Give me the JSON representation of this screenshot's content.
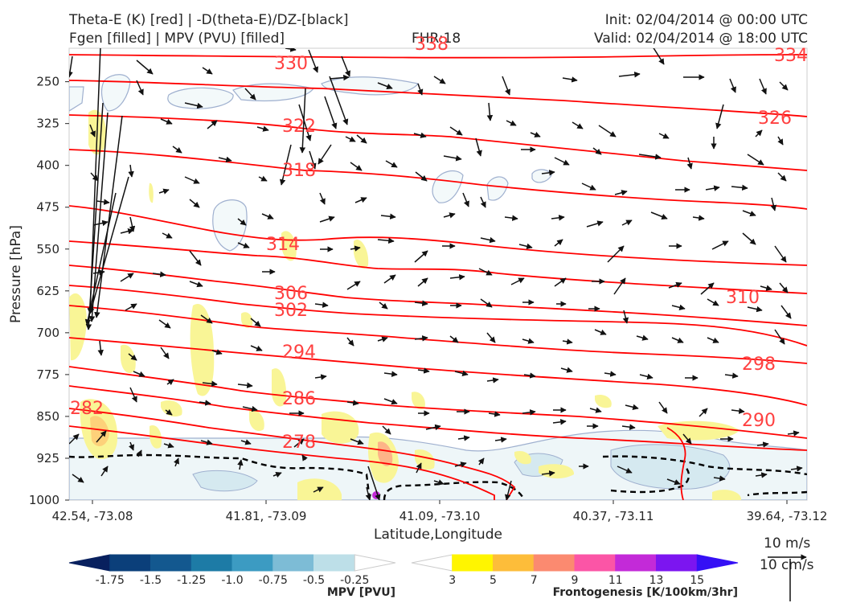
{
  "header": {
    "title_line1": "Theta-E (K) [red] | -D(theta-E)/DZ-[black]",
    "title_line2": "Fgen [filled] | MPV (PVU) [filled]",
    "fhr": "FHR:18",
    "init": "Init: 02/04/2014 @ 00:00 UTC",
    "valid": "Valid: 02/04/2014 @ 18:00 UTC"
  },
  "chart_data": {
    "type": "cross-section",
    "xlabel": "Latitude,Longitude",
    "ylabel": "Pressure [hPa]",
    "x_ticks": [
      "42.54, -73.08",
      "41.81, -73.09",
      "41.09, -73.10",
      "40.37, -73.11",
      "39.64, -73.12"
    ],
    "y_ticks": [
      "250",
      "325",
      "400",
      "475",
      "550",
      "625",
      "700",
      "775",
      "850",
      "925",
      "1000"
    ],
    "ylim": [
      1000,
      190
    ],
    "theta_e_labels": [
      "338",
      "334",
      "330",
      "326",
      "322",
      "318",
      "314",
      "310",
      "306",
      "302",
      "298",
      "294",
      "290",
      "286",
      "282",
      "278"
    ],
    "mpv_colorbar": {
      "title": "MPV [PVU]",
      "ticks": [
        "-1.75",
        "-1.5",
        "-1.25",
        "-1.0",
        "-0.75",
        "-0.5",
        "-0.25"
      ],
      "colors": [
        "#08205e",
        "#0b3f7a",
        "#13588f",
        "#1d7ba6",
        "#3c9bc2",
        "#7dbcd6",
        "#bddfe8",
        "#ffffff"
      ]
    },
    "fgen_colorbar": {
      "title": "Frontogenesis [K/100km/3hr]",
      "ticks": [
        "3",
        "5",
        "7",
        "9",
        "11",
        "13",
        "15"
      ],
      "colors": [
        "#ffffff",
        "#fff500",
        "#fdbd3a",
        "#fb8a70",
        "#fb55a6",
        "#c32ad8",
        "#7c15f0",
        "#3510f5"
      ]
    },
    "wind_reference": {
      "horizontal": "10 m/s",
      "vertical": "10 cm/s"
    }
  },
  "colors": {
    "theta_e": "#ff0000",
    "theta_e_label": "#ff4040",
    "stability": "#000000"
  }
}
